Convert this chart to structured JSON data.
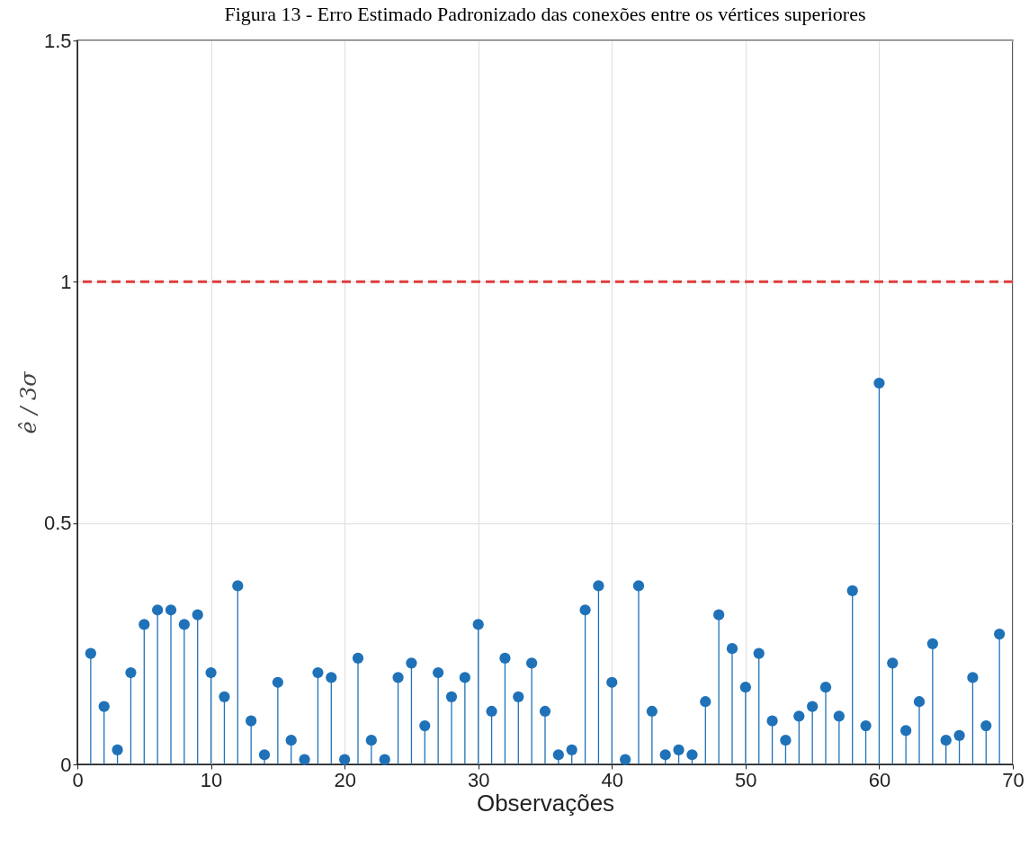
{
  "chart_data": {
    "type": "lollipop",
    "title": "Figura 13 - Erro Estimado Padronizado das conexões entre os vértices superiores",
    "xlabel": "Observações",
    "ylabel": "ê / 3σ",
    "x": [
      1,
      2,
      3,
      4,
      5,
      6,
      7,
      8,
      9,
      10,
      11,
      12,
      13,
      14,
      15,
      16,
      17,
      18,
      19,
      20,
      21,
      22,
      23,
      24,
      25,
      26,
      27,
      28,
      29,
      30,
      31,
      32,
      33,
      34,
      35,
      36,
      37,
      38,
      39,
      40,
      41,
      42,
      43,
      44,
      45,
      46,
      47,
      48,
      49,
      50,
      51,
      52,
      53,
      54,
      55,
      56,
      57,
      58,
      59,
      60,
      61,
      62,
      63,
      64,
      65,
      66,
      67,
      68,
      69
    ],
    "values": [
      0.23,
      0.12,
      0.03,
      0.19,
      0.29,
      0.32,
      0.32,
      0.29,
      0.31,
      0.19,
      0.14,
      0.37,
      0.09,
      0.02,
      0.17,
      0.05,
      0.01,
      0.19,
      0.18,
      0.01,
      0.22,
      0.05,
      0.01,
      0.18,
      0.21,
      0.08,
      0.19,
      0.14,
      0.18,
      0.29,
      0.11,
      0.22,
      0.14,
      0.21,
      0.11,
      0.02,
      0.03,
      0.32,
      0.37,
      0.17,
      0.01,
      0.37,
      0.11,
      0.02,
      0.03,
      0.02,
      0.13,
      0.31,
      0.24,
      0.16,
      0.23,
      0.09,
      0.05,
      0.1,
      0.12,
      0.16,
      0.1,
      0.36,
      0.08,
      0.79,
      0.21,
      0.07,
      0.13,
      0.25,
      0.05,
      0.06,
      0.18,
      0.08,
      0.27
    ],
    "color": "#1f72b8",
    "marker": "circle",
    "xlim": [
      0,
      70
    ],
    "xticks": [
      0,
      10,
      20,
      30,
      40,
      50,
      60,
      70
    ],
    "ylim": [
      0,
      1.5
    ],
    "yticks": [
      0,
      0.5,
      1,
      1.5
    ],
    "grid": true,
    "ref_lines": [
      {
        "axis": "y",
        "value": 1,
        "color": "#e03c3c",
        "line_style": "dashed"
      }
    ]
  }
}
